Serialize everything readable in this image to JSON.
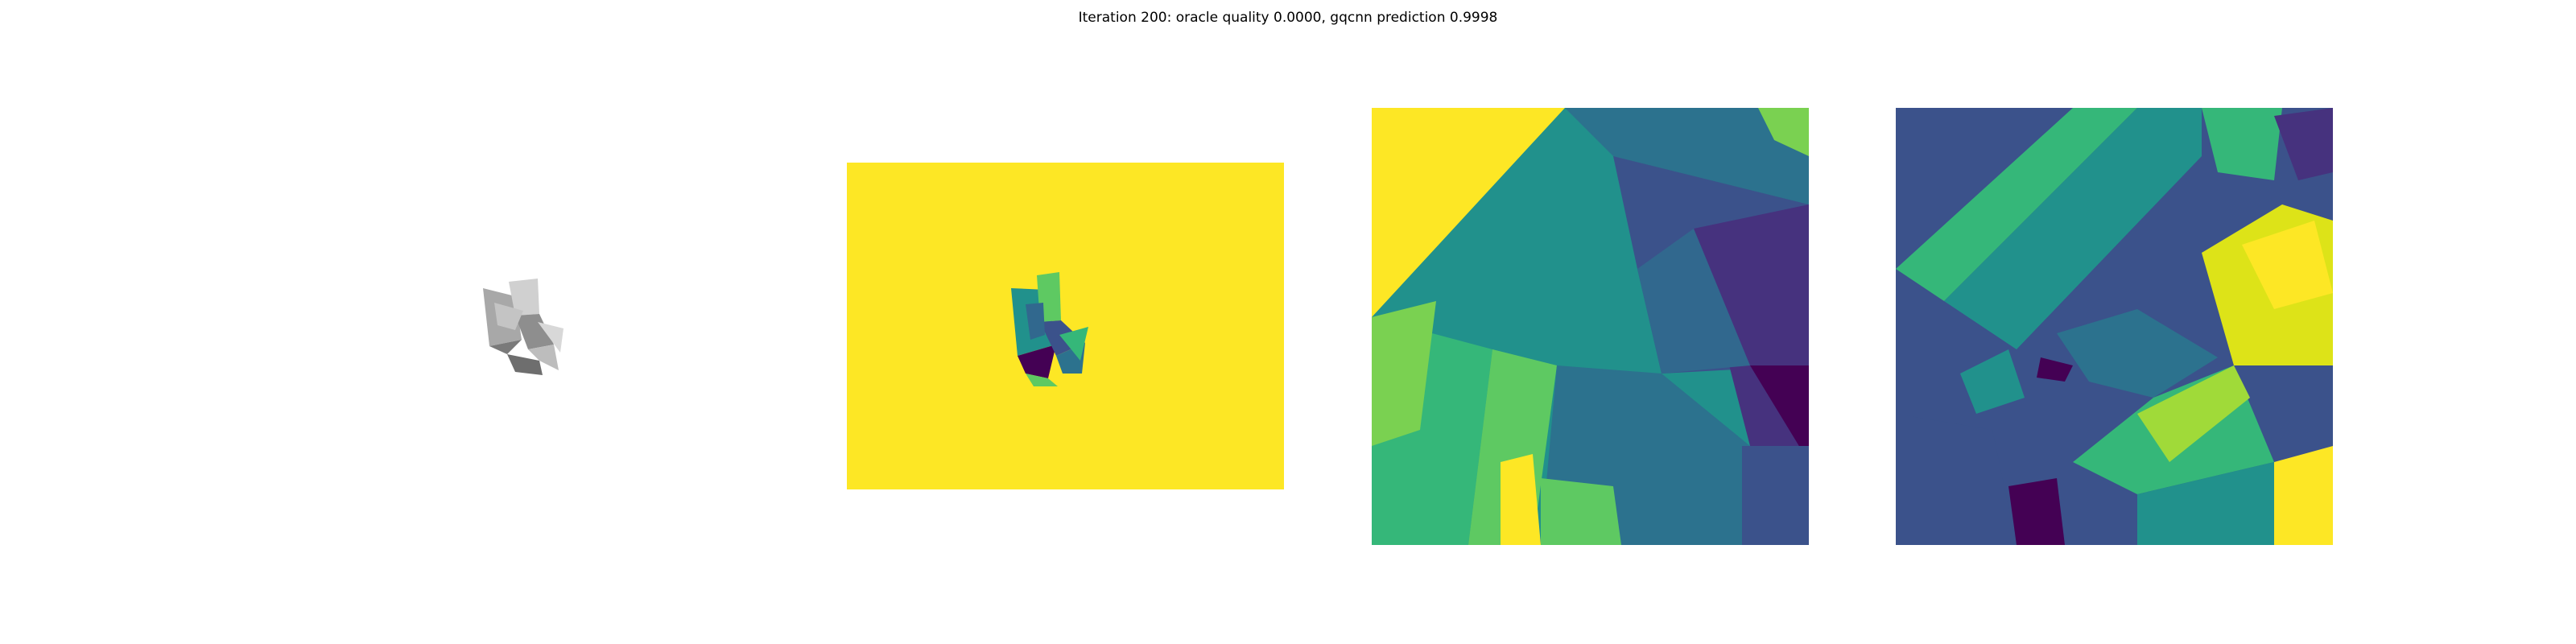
{
  "figure": {
    "title": "Iteration 200: oracle quality 0.0000, gqcnn prediction 0.9998"
  },
  "colors": {
    "viridis_yellow": "#fde725",
    "viridis_light_green": "#5ec962",
    "viridis_green": "#21918c",
    "viridis_blue": "#3b528b",
    "viridis_purple": "#440154",
    "gray_light": "#c9c9c9",
    "gray_mid": "#9a9a9a",
    "gray_dark": "#6e6e6e"
  }
}
